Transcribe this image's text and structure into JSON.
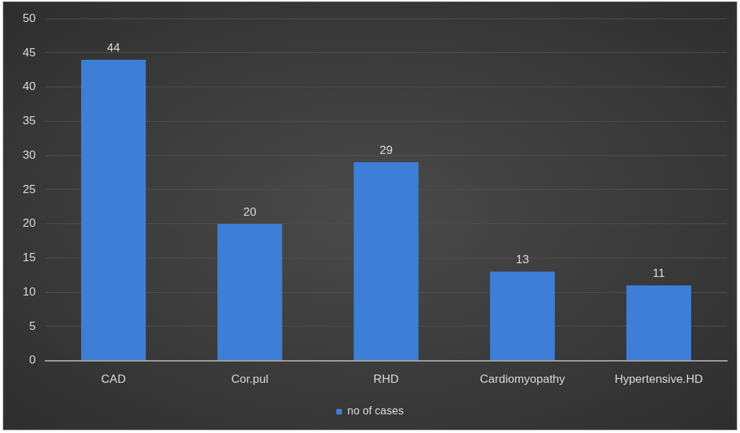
{
  "chart_data": {
    "type": "bar",
    "categories": [
      "CAD",
      "Cor.pul",
      "RHD",
      "Cardiomyopathy",
      "Hypertensive.HD"
    ],
    "series": [
      {
        "name": "no of cases",
        "color": "#3d7fd6",
        "values": [
          44,
          20,
          29,
          13,
          11
        ]
      }
    ],
    "ylim": [
      0,
      50
    ],
    "yticks": [
      0,
      5,
      10,
      15,
      20,
      25,
      30,
      35,
      40,
      45,
      50
    ],
    "grid": "y",
    "legend": "bottom",
    "data_labels": true
  }
}
